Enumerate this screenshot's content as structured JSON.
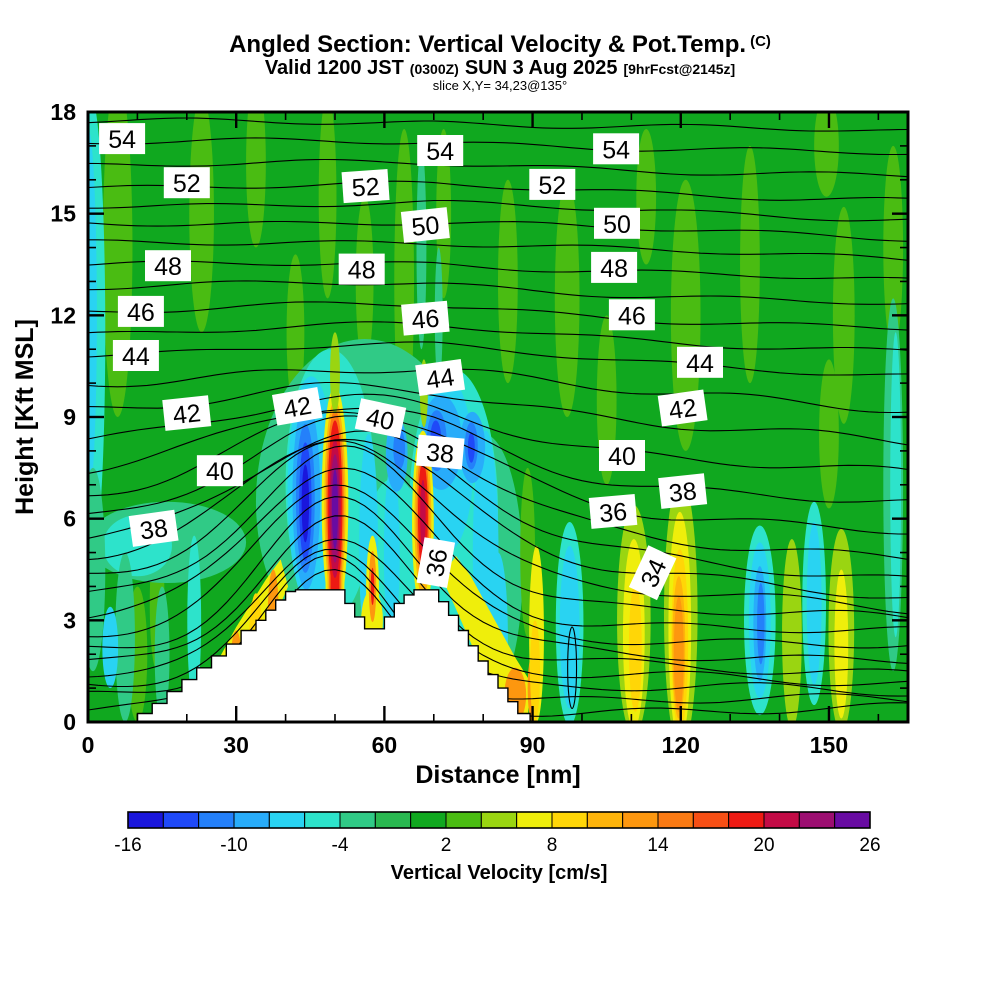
{
  "header": {
    "title_main": "Angled Section: Vertical Velocity & Pot.Temp.",
    "title_unit": "(C)",
    "subtitle_parts": [
      "Valid 1200 JST",
      "(0300Z)",
      "SUN 3 Aug 2025",
      "[9hrFcst@2145z]"
    ],
    "slice_line": "slice X,Y= 34,23@135°"
  },
  "axes": {
    "x": {
      "label": "Distance [nm]",
      "ticks": [
        0,
        30,
        60,
        90,
        120,
        150
      ],
      "minor_ticks": [
        10,
        20,
        40,
        50,
        70,
        80,
        100,
        110,
        130,
        140,
        160
      ],
      "max": 166
    },
    "y": {
      "label": "Height [Kft MSL]",
      "ticks": [
        0,
        3,
        6,
        9,
        12,
        15,
        18
      ],
      "minor_ticks": [
        1,
        2,
        4,
        5,
        7,
        8,
        10,
        11,
        13,
        14,
        16,
        17
      ],
      "max": 18
    }
  },
  "colorbar": {
    "title": "Vertical Velocity [cm/s]",
    "tick_labels": [
      -16,
      -10,
      -4,
      2,
      8,
      14,
      20,
      26
    ],
    "min": -16,
    "max": 26,
    "interval": 2,
    "colors": [
      "#1a16dc",
      "#1f49f8",
      "#2480fa",
      "#28acfa",
      "#29d3f2",
      "#2de3cb",
      "#30ca86",
      "#29b850",
      "#10a81f",
      "#4abc12",
      "#9ad511",
      "#efee0b",
      "#ffd607",
      "#feb40b",
      "#fd970f",
      "#fb7a13",
      "#f74f15",
      "#ee1a13",
      "#c30b46",
      "#9c0e71",
      "#680ba2"
    ]
  },
  "chart_data": {
    "type": "heatmap",
    "subtype": "filled-contour-vertical-cross-section",
    "shading_variable": "Vertical Velocity",
    "shading_units": "cm/s",
    "shading_range": [
      -16,
      26
    ],
    "contour_variable": "Potential Temperature",
    "contour_units": "C",
    "contour_labeled_levels": [
      34,
      36,
      38,
      40,
      42,
      44,
      46,
      48,
      50,
      52,
      54
    ],
    "x_max": 166,
    "y_max": 18,
    "contour_labels": [
      [
        54,
        6.9,
        17.2,
        0
      ],
      [
        52,
        20,
        15.9,
        0
      ],
      [
        48,
        16.2,
        13.45,
        0
      ],
      [
        46,
        10.7,
        12.1,
        0
      ],
      [
        44,
        9.7,
        10.8,
        0
      ],
      [
        42,
        20,
        9.1,
        -6
      ],
      [
        40,
        26.7,
        7.4,
        0
      ],
      [
        38,
        13.3,
        5.7,
        -8
      ],
      [
        54,
        71.3,
        16.85,
        0
      ],
      [
        52,
        56.2,
        15.8,
        -4
      ],
      [
        50,
        68.3,
        14.65,
        -6
      ],
      [
        48,
        55.4,
        13.35,
        0
      ],
      [
        46,
        68.3,
        11.9,
        -5
      ],
      [
        44,
        71.3,
        10.15,
        -8
      ],
      [
        42,
        42.4,
        9.3,
        -10
      ],
      [
        40,
        59.2,
        8.95,
        12
      ],
      [
        38,
        71.3,
        7.95,
        5
      ],
      [
        36,
        70.5,
        4.7,
        -80
      ],
      [
        54,
        106.9,
        16.9,
        0
      ],
      [
        52,
        94,
        15.85,
        0
      ],
      [
        50,
        107.1,
        14.7,
        0
      ],
      [
        48,
        106.5,
        13.4,
        0
      ],
      [
        46,
        110.1,
        12,
        0
      ],
      [
        44,
        123.9,
        10.6,
        0
      ],
      [
        42,
        120.4,
        9.25,
        -8
      ],
      [
        40,
        108.1,
        7.85,
        0
      ],
      [
        38,
        120.4,
        6.8,
        -6
      ],
      [
        36,
        106.3,
        6.2,
        -5
      ],
      [
        34,
        114.4,
        4.4,
        -65
      ]
    ],
    "contour_lines": [
      [
        0.35,
        4.1,
        49,
        13,
        0
      ],
      [
        0.7,
        4.1,
        49,
        13.5,
        -0.1
      ],
      [
        1.05,
        4.15,
        50,
        14,
        -0.15
      ],
      [
        1.4,
        4.2,
        50,
        14.5,
        -0.2
      ],
      [
        1.8,
        4.25,
        50,
        15,
        -0.3
      ],
      [
        2.2,
        4.3,
        51,
        15.5,
        -0.35
      ],
      [
        2.65,
        4.35,
        51,
        16,
        -0.4
      ],
      [
        3.1,
        4.4,
        51,
        17,
        -0.5
      ],
      [
        3.6,
        4.45,
        52,
        18,
        -0.6
      ],
      [
        4.15,
        4.2,
        52,
        19,
        -0.8
      ],
      [
        4.75,
        3.8,
        52,
        20,
        -1.0
      ],
      [
        5.35,
        3.2,
        53,
        21,
        -1.1
      ],
      [
        5.95,
        2.9,
        53,
        22,
        -1.1
      ],
      [
        6.6,
        2.5,
        54,
        23,
        -1.0
      ],
      [
        7.3,
        2.0,
        54,
        24,
        -0.9
      ],
      [
        8.1,
        1.5,
        55,
        25,
        -0.8
      ],
      [
        9.0,
        1.0,
        55,
        26,
        -0.7
      ],
      [
        9.9,
        0.6,
        56,
        27,
        -0.6
      ],
      [
        10.8,
        0.35,
        56,
        28,
        -0.55
      ],
      [
        11.45,
        0.25,
        57,
        28,
        -0.5
      ],
      [
        12.1,
        0.2,
        57,
        28,
        -0.5
      ],
      [
        12.8,
        0.15,
        57,
        28,
        -0.5
      ],
      [
        13.45,
        0.1,
        58,
        28,
        -0.45
      ],
      [
        14.1,
        0.08,
        58,
        28,
        -0.45
      ],
      [
        14.7,
        0.06,
        58,
        28,
        -0.4
      ],
      [
        15.25,
        0.05,
        58,
        28,
        -0.4
      ],
      [
        15.8,
        0.04,
        58,
        28,
        -0.4
      ],
      [
        16.45,
        0.03,
        58,
        28,
        -0.35
      ],
      [
        17.1,
        0.02,
        58,
        28,
        -0.35
      ],
      [
        17.7,
        0.01,
        58,
        28,
        -0.3
      ]
    ],
    "contour_ovals": [
      [
        98,
        1.6,
        0.9,
        1.2
      ]
    ],
    "terrain_steps": [
      [
        10,
        13,
        0.25
      ],
      [
        13,
        16,
        0.55
      ],
      [
        16,
        19,
        0.9
      ],
      [
        19,
        22,
        1.25
      ],
      [
        22,
        25,
        1.6
      ],
      [
        25,
        28,
        1.95
      ],
      [
        28,
        31,
        2.3
      ],
      [
        31,
        34,
        2.7
      ],
      [
        34,
        36,
        3.0
      ],
      [
        36,
        38,
        3.3
      ],
      [
        38,
        40,
        3.6
      ],
      [
        40,
        42,
        3.85
      ],
      [
        42,
        52,
        3.9
      ],
      [
        52,
        54,
        3.5
      ],
      [
        54,
        56,
        3.1
      ],
      [
        56,
        60,
        2.75
      ],
      [
        60,
        62,
        3.1
      ],
      [
        62,
        64,
        3.5
      ],
      [
        64,
        66,
        3.75
      ],
      [
        66,
        71,
        3.9
      ],
      [
        71,
        73,
        3.55
      ],
      [
        73,
        75,
        3.15
      ],
      [
        75,
        77,
        2.7
      ],
      [
        77,
        79,
        2.25
      ],
      [
        79,
        81,
        1.8
      ],
      [
        81,
        83,
        1.4
      ],
      [
        83,
        85,
        1.0
      ],
      [
        85,
        87,
        0.6
      ],
      [
        87,
        89.5,
        0.25
      ]
    ],
    "field_shapes": [
      [
        "e",
        9,
        6,
        14,
        3,
        5
      ],
      [
        "e",
        9,
        23,
        15,
        2.5,
        3.5
      ],
      [
        "e",
        9,
        34,
        16.5,
        2,
        2.5
      ],
      [
        "e",
        9,
        42,
        11.5,
        1.8,
        2.3
      ],
      [
        "e",
        9,
        48.5,
        15.5,
        1.8,
        3
      ],
      [
        "e",
        9,
        56,
        13,
        1.8,
        2.5
      ],
      [
        "e",
        9,
        64,
        13,
        2,
        4.5
      ],
      [
        "e",
        9,
        72,
        15,
        1.5,
        2.5
      ],
      [
        "e",
        9,
        85,
        13,
        2,
        3
      ],
      [
        "e",
        9,
        97,
        12.5,
        2.5,
        3.5
      ],
      [
        "e",
        9,
        105,
        9.5,
        2,
        2.5
      ],
      [
        "e",
        9,
        113,
        15.5,
        2,
        2
      ],
      [
        "e",
        9,
        121,
        12,
        3,
        4
      ],
      [
        "e",
        9,
        134,
        13.5,
        2,
        3.5
      ],
      [
        "e",
        9,
        149.5,
        17,
        2.5,
        1.5
      ],
      [
        "e",
        9,
        153,
        12,
        2.2,
        3.2
      ],
      [
        "e",
        9,
        163,
        14,
        2,
        3
      ],
      [
        "e",
        9,
        150,
        8.5,
        2,
        2.2
      ],
      [
        "e",
        9,
        10,
        2,
        2,
        2
      ],
      [
        "e",
        9,
        14,
        3.5,
        1.5,
        2
      ],
      [
        "e",
        6,
        67.5,
        14,
        1,
        3
      ],
      [
        "e",
        6,
        71,
        12,
        0.8,
        2
      ],
      [
        "e",
        6,
        16,
        5.3,
        16,
        1.2
      ],
      [
        "e",
        5,
        10,
        5.2,
        7,
        0.9
      ],
      [
        "e",
        5,
        0.5,
        11.5,
        3,
        7
      ],
      [
        "e",
        4,
        0,
        12,
        1.8,
        5.5
      ],
      [
        "e",
        6,
        1,
        4.5,
        2.5,
        3
      ],
      [
        "e",
        6,
        7.5,
        2.5,
        2,
        2.5
      ],
      [
        "e",
        4,
        4.5,
        2.2,
        1.6,
        1.2
      ],
      [
        "e",
        6,
        15,
        2,
        1.5,
        2
      ],
      [
        "e",
        5,
        21.5,
        3,
        1.4,
        2.5
      ],
      [
        "e",
        6,
        56,
        6.5,
        22,
        4.8
      ],
      [
        "e",
        6,
        80,
        4.5,
        8,
        4
      ],
      [
        "e",
        5,
        49,
        7,
        9,
        4
      ],
      [
        "e",
        5,
        74,
        6.2,
        9,
        4.2
      ],
      [
        "e",
        5,
        62,
        4.2,
        7,
        3
      ],
      [
        "e",
        4,
        45.2,
        6.8,
        4.8,
        3.4
      ],
      [
        "e",
        4,
        56.8,
        5.3,
        1.9,
        3.2
      ],
      [
        "e",
        4,
        61.5,
        5,
        1.6,
        2.6
      ],
      [
        "e",
        4,
        72.5,
        7.6,
        5.5,
        2.6
      ],
      [
        "e",
        4,
        80.5,
        5,
        2.6,
        3.6
      ],
      [
        "e",
        4,
        83,
        2.5,
        2,
        2.5
      ],
      [
        "e",
        3,
        44.2,
        6.7,
        2.8,
        2.8
      ],
      [
        "e",
        2,
        44,
        6.6,
        1.9,
        2.2
      ],
      [
        "e",
        1,
        44,
        6.5,
        1.25,
        1.75
      ],
      [
        "e",
        0,
        44,
        6.45,
        0.75,
        1.15
      ],
      [
        "e",
        3,
        62.5,
        7.9,
        2.2,
        1.1
      ],
      [
        "e",
        2,
        63,
        8.05,
        1.2,
        0.6
      ],
      [
        "e",
        3,
        71.5,
        8.25,
        4.2,
        1.4
      ],
      [
        "e",
        2,
        70.6,
        8.3,
        2,
        0.9
      ],
      [
        "e",
        1,
        70.4,
        8.35,
        1.1,
        0.55
      ],
      [
        "e",
        3,
        77.8,
        8.1,
        2.6,
        1.05
      ],
      [
        "e",
        2,
        77.6,
        8.15,
        1.3,
        0.7
      ],
      [
        "e",
        1,
        77.6,
        8.1,
        0.7,
        0.45
      ],
      [
        "e",
        5,
        97.5,
        2.9,
        2.8,
        3
      ],
      [
        "e",
        4,
        97.5,
        2.8,
        2,
        2.4
      ],
      [
        "e",
        5,
        136,
        3,
        3.2,
        2.8
      ],
      [
        "e",
        4,
        136,
        3,
        2.2,
        2.3
      ],
      [
        "e",
        3,
        136,
        2.9,
        1.3,
        1.7
      ],
      [
        "e",
        2,
        136.2,
        2.9,
        0.75,
        1.2
      ],
      [
        "e",
        5,
        147,
        3.5,
        2.4,
        3
      ],
      [
        "e",
        4,
        147,
        3.5,
        1.5,
        2.4
      ],
      [
        "e",
        6,
        163,
        7,
        2,
        5.5
      ],
      [
        "e",
        5,
        163.5,
        7,
        1.1,
        4.5
      ],
      [
        "e",
        9,
        89,
        5,
        1.5,
        2.5
      ],
      [
        "p",
        11,
        [
          [
            21,
            0.3
          ],
          [
            24,
            1.2
          ],
          [
            27,
            2
          ],
          [
            30,
            2.8
          ],
          [
            33,
            3.5
          ],
          [
            36,
            4.2
          ],
          [
            39,
            4.8
          ],
          [
            40.5,
            4
          ],
          [
            37.5,
            3
          ],
          [
            34.5,
            2.2
          ],
          [
            31.5,
            1.4
          ],
          [
            28.5,
            0.6
          ],
          [
            25,
            -0.1
          ]
        ]
      ],
      [
        "e",
        12,
        34,
        2,
        1.5,
        1.8
      ],
      [
        "e",
        14,
        30,
        1.5,
        1.2,
        1.2
      ],
      [
        "e",
        14,
        37.5,
        3.2,
        1.1,
        1.3
      ],
      [
        "e",
        16,
        30,
        1.3,
        0.55,
        0.6
      ],
      [
        "p",
        11,
        [
          [
            71.5,
            4.3
          ],
          [
            74,
            3.5
          ],
          [
            77,
            2.5
          ],
          [
            80,
            1.5
          ],
          [
            83,
            0.7
          ],
          [
            86,
            0.2
          ],
          [
            89,
            0
          ],
          [
            89.5,
            1.2
          ],
          [
            86.5,
            1.9
          ],
          [
            83.5,
            2.7
          ],
          [
            80.5,
            3.5
          ],
          [
            77.5,
            4.3
          ],
          [
            74.5,
            4.9
          ]
        ]
      ],
      [
        "e",
        14,
        86.5,
        0.8,
        2.2,
        0.8
      ],
      [
        "e",
        14,
        90,
        1,
        1,
        1
      ],
      [
        "e",
        11,
        90.8,
        2.6,
        1.5,
        2.6
      ],
      [
        "e",
        12,
        90.5,
        1.5,
        1,
        1.5
      ],
      [
        "e",
        11,
        57.5,
        3,
        2.2,
        0.9
      ],
      [
        "e",
        11,
        57.6,
        3.9,
        1.3,
        1.6
      ],
      [
        "e",
        14,
        57.6,
        4,
        0.75,
        1.05
      ],
      [
        "e",
        17,
        57.6,
        4,
        0.35,
        0.55
      ],
      [
        "e",
        10,
        110.5,
        3,
        3.4,
        3.4
      ],
      [
        "e",
        11,
        110.5,
        2.6,
        2.2,
        2.8
      ],
      [
        "e",
        12,
        110.8,
        2.2,
        1.3,
        1.9
      ],
      [
        "e",
        10,
        120,
        3.2,
        3.4,
        4
      ],
      [
        "e",
        11,
        119.8,
        2.8,
        2.3,
        3.4
      ],
      [
        "e",
        12,
        119.8,
        2.4,
        1.7,
        2.7
      ],
      [
        "e",
        13,
        119.6,
        2.2,
        1.3,
        2.1
      ],
      [
        "e",
        14,
        119.6,
        2,
        1,
        1.7
      ],
      [
        "e",
        10,
        142.5,
        2.6,
        2,
        2.8
      ],
      [
        "e",
        10,
        152.5,
        2.7,
        2.6,
        3
      ],
      [
        "e",
        11,
        152.5,
        2.3,
        1.4,
        2.2
      ],
      [
        "e",
        11,
        50,
        6.5,
        2.7,
        3.4
      ],
      [
        "r",
        11,
        48.1,
        51.9,
        3.8,
        6.5
      ],
      [
        "e",
        13,
        50,
        6.45,
        2.15,
        3.05
      ],
      [
        "r",
        13,
        48.5,
        51.5,
        3.8,
        6.4
      ],
      [
        "e",
        15,
        50,
        6.4,
        1.8,
        2.8
      ],
      [
        "r",
        15,
        48.8,
        51.2,
        3.8,
        6.4
      ],
      [
        "e",
        17,
        50,
        6.35,
        1.5,
        2.55
      ],
      [
        "r",
        17,
        49.1,
        50.9,
        3.8,
        6.3
      ],
      [
        "e",
        18,
        50,
        6.3,
        1.18,
        2.05
      ],
      [
        "e",
        19,
        50,
        6.3,
        0.92,
        1.6
      ],
      [
        "e",
        20,
        50,
        6.28,
        0.62,
        1.18
      ],
      [
        "e",
        11,
        67.8,
        5.9,
        2.2,
        2.7
      ],
      [
        "r",
        11,
        66.7,
        69,
        3.8,
        5.9
      ],
      [
        "e",
        13,
        67.8,
        6,
        1.7,
        2.3
      ],
      [
        "e",
        15,
        67.8,
        6.05,
        1.3,
        1.95
      ],
      [
        "e",
        17,
        67.8,
        6.1,
        1,
        1.6
      ],
      [
        "e",
        18,
        67.8,
        6.1,
        0.55,
        1.05
      ],
      [
        "e",
        10,
        50,
        10.3,
        1,
        1.2
      ],
      [
        "e",
        10,
        68,
        9.7,
        0.8,
        1
      ]
    ]
  }
}
